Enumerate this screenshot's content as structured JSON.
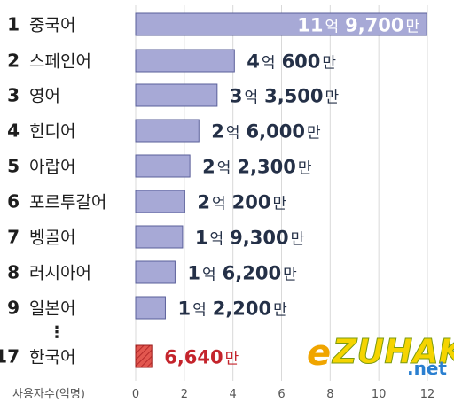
{
  "chart_data": {
    "type": "bar",
    "orientation": "horizontal",
    "xlabel": "사용자수(억명)",
    "xlim": [
      0,
      12
    ],
    "xticks": [
      "0",
      "2",
      "4",
      "6",
      "8",
      "10",
      "12"
    ],
    "gridlines": true,
    "rows": [
      {
        "rank": "1",
        "label": "중국어",
        "value": 11.97,
        "value_parts": [
          [
            "11",
            "억"
          ],
          [
            "9,700",
            "만"
          ]
        ],
        "label_inside": true
      },
      {
        "rank": "2",
        "label": "스페인어",
        "value": 4.06,
        "value_parts": [
          [
            "4",
            "억"
          ],
          [
            "600",
            "만"
          ]
        ]
      },
      {
        "rank": "3",
        "label": "영어",
        "value": 3.35,
        "value_parts": [
          [
            "3",
            "억"
          ],
          [
            "3,500",
            "만"
          ]
        ]
      },
      {
        "rank": "4",
        "label": "힌디어",
        "value": 2.6,
        "value_parts": [
          [
            "2",
            "억"
          ],
          [
            "6,000",
            "만"
          ]
        ]
      },
      {
        "rank": "5",
        "label": "아랍어",
        "value": 2.23,
        "value_parts": [
          [
            "2",
            "억"
          ],
          [
            "2,300",
            "만"
          ]
        ]
      },
      {
        "rank": "6",
        "label": "포르투갈어",
        "value": 2.02,
        "value_parts": [
          [
            "2",
            "억"
          ],
          [
            "200",
            "만"
          ]
        ]
      },
      {
        "rank": "7",
        "label": "벵골어",
        "value": 1.93,
        "value_parts": [
          [
            "1",
            "억"
          ],
          [
            "9,300",
            "만"
          ]
        ]
      },
      {
        "rank": "8",
        "label": "러시아어",
        "value": 1.62,
        "value_parts": [
          [
            "1",
            "억"
          ],
          [
            "6,200",
            "만"
          ]
        ]
      },
      {
        "rank": "9",
        "label": "일본어",
        "value": 1.22,
        "value_parts": [
          [
            "1",
            "억"
          ],
          [
            "2,200",
            "만"
          ]
        ]
      },
      {
        "rank": "17",
        "label": "한국어",
        "value": 0.664,
        "value_parts": [
          [
            "6,640",
            "만"
          ]
        ],
        "highlight": true
      }
    ],
    "ellipsis": "⋮"
  },
  "colors": {
    "bar_fill": "#a7a9d6",
    "bar_stroke": "#5a5f9a",
    "highlight_fill": "#e2574f",
    "highlight_stroke": "#9a1c1c",
    "value_text": "#243047",
    "highlight_text": "#c4242c",
    "grid": "#d9d9d9"
  },
  "watermark": {
    "text": "eZUHAK.net"
  }
}
